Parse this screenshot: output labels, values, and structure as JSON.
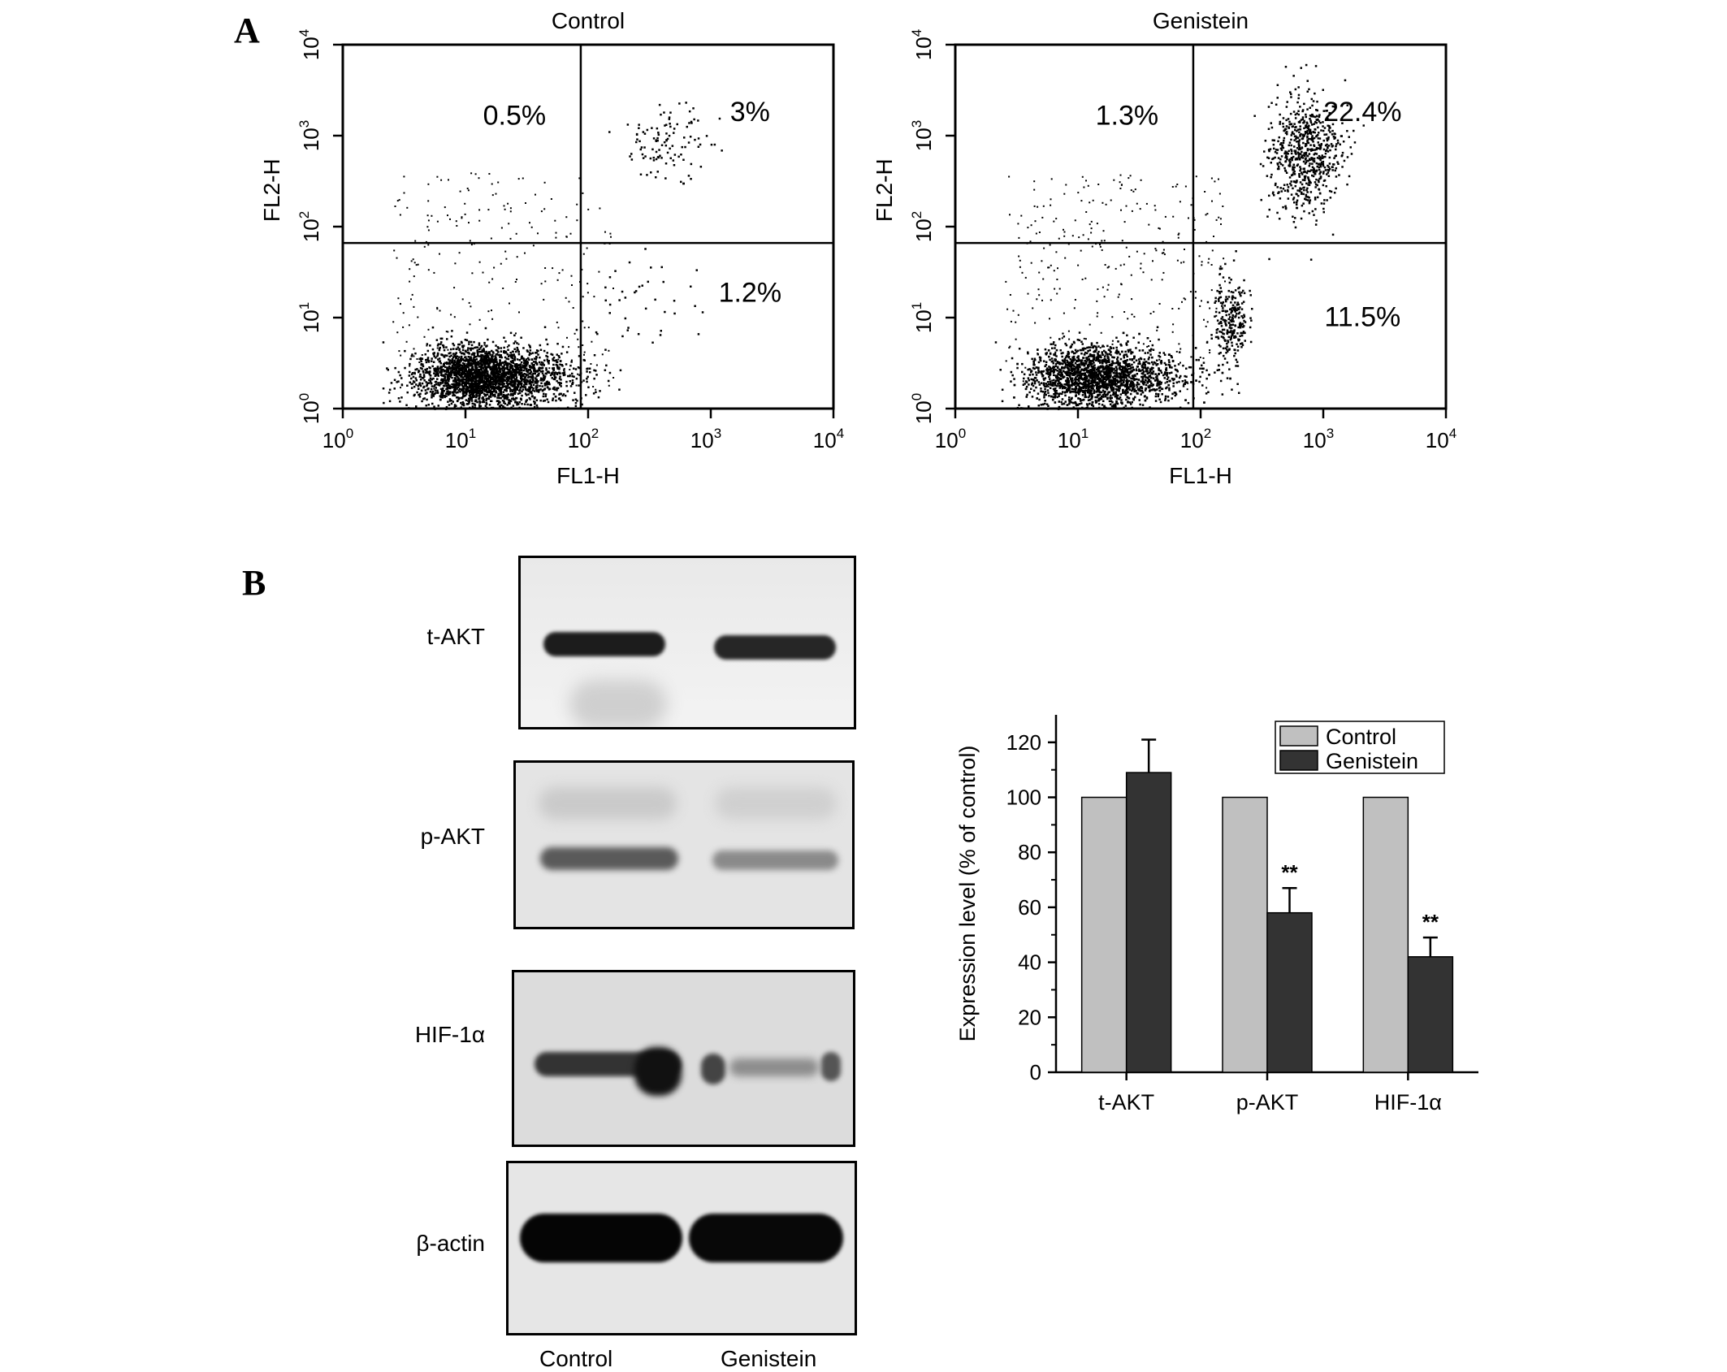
{
  "panel_labels": [
    "A",
    "B"
  ],
  "flow_plots": [
    {
      "title": "Control",
      "xlabel": "FL1-H",
      "ylabel": "FL2-H",
      "quadrants": {
        "upper_left": "0.5%",
        "upper_right": "3%",
        "lower_right": "1.2%"
      }
    },
    {
      "title": "Genistein",
      "xlabel": "FL1-H",
      "ylabel": "FL2-H",
      "quadrants": {
        "upper_left": "1.3%",
        "upper_right": "22.4%",
        "lower_right": "11.5%"
      }
    }
  ],
  "flow_axis": {
    "tick_base": "10",
    "tick_exponents": [
      "0",
      "1",
      "2",
      "3",
      "4"
    ]
  },
  "western_blot": {
    "rows": [
      {
        "label": "t-AKT"
      },
      {
        "label": "p-AKT"
      },
      {
        "label": "HIF-1α"
      },
      {
        "label": "β-actin"
      }
    ],
    "lanes": [
      "Control",
      "Genistein"
    ]
  },
  "chart_data": {
    "type": "bar",
    "categories": [
      "t-AKT",
      "p-AKT",
      "HIF-1α"
    ],
    "series": [
      {
        "name": "Control",
        "values": [
          100,
          100,
          100
        ],
        "error": [
          0,
          0,
          0
        ],
        "color": "#c0c0c0"
      },
      {
        "name": "Genistein",
        "values": [
          109,
          58,
          42
        ],
        "error": [
          12,
          9,
          7
        ],
        "color": "#333333"
      }
    ],
    "significance": [
      "",
      "**",
      "**"
    ],
    "ylabel": "Expression level (% of control)",
    "ylim": [
      0,
      130
    ],
    "yticks": [
      0,
      20,
      40,
      60,
      80,
      100,
      120
    ],
    "legend": "top-right",
    "grid": false
  }
}
